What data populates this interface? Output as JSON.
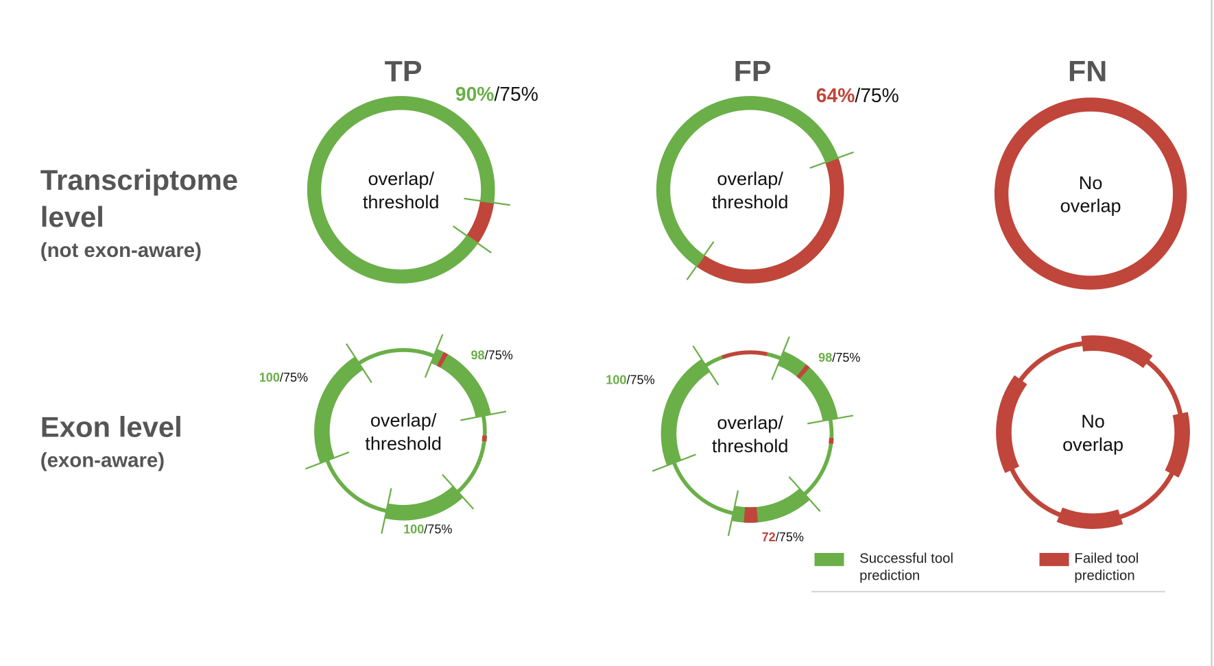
{
  "columns": [
    "TP",
    "FP",
    "FN"
  ],
  "rows": [
    {
      "title": [
        "Transcriptome",
        "level"
      ],
      "subtitle": "(not exon-aware)"
    },
    {
      "title": [
        "Exon level"
      ],
      "subtitle": "(exon-aware)"
    }
  ],
  "circles": [
    {
      "center": [
        "overlap/",
        "threshold"
      ],
      "labels": [
        {
          "score": "90%",
          "rest": "/75%"
        }
      ]
    },
    {
      "center": [
        "overlap/",
        "threshold"
      ],
      "labels": [
        {
          "score": "64%",
          "rest": "/75%"
        }
      ]
    },
    {
      "center": [
        "No",
        "overlap"
      ],
      "labels": []
    },
    {
      "center": [
        "overlap/",
        "threshold"
      ],
      "labels": [
        {
          "score": "98",
          "rest": "/75%"
        },
        {
          "score": "100",
          "rest": "/75%"
        },
        {
          "score": "100",
          "rest": "/75%"
        }
      ]
    },
    {
      "center": [
        "overlap/",
        "threshold"
      ],
      "labels": [
        {
          "score": "98",
          "rest": "/75%"
        },
        {
          "score": "100",
          "rest": "/75%"
        },
        {
          "score": "72",
          "rest": "/75%"
        }
      ]
    },
    {
      "center": [
        "No",
        "overlap"
      ],
      "labels": []
    }
  ],
  "legend": [
    {
      "label": [
        "Successful tool",
        "prediction"
      ]
    },
    {
      "label": [
        "Failed tool",
        "prediction"
      ]
    }
  ]
}
